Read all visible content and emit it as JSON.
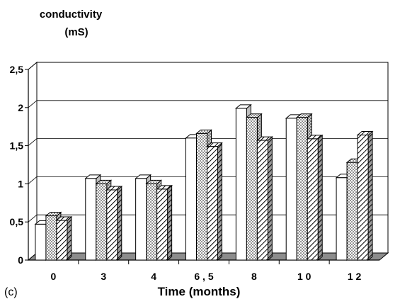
{
  "chart_data": {
    "type": "bar",
    "ylabel_line1": "conductivity",
    "ylabel_line2": "(mS)",
    "xlabel": "Time (months)",
    "panel_label": "(c)",
    "categories": [
      "0",
      "3",
      "4",
      "6 , 5",
      "8",
      "1 0",
      "1 2"
    ],
    "y_ticks": [
      "0",
      "0,5",
      "1",
      "1,5",
      "2",
      "2,5"
    ],
    "ylim": [
      0,
      2.5
    ],
    "grid": true,
    "series": [
      {
        "pattern": "white",
        "values": [
          0.47,
          1.07,
          1.07,
          1.6,
          1.99,
          1.86,
          1.08
        ]
      },
      {
        "pattern": "dotted",
        "values": [
          0.58,
          1.0,
          1.0,
          1.66,
          1.87,
          1.87,
          1.28
        ]
      },
      {
        "pattern": "hatched",
        "values": [
          0.52,
          0.92,
          0.93,
          1.49,
          1.57,
          1.59,
          1.64
        ]
      }
    ]
  }
}
